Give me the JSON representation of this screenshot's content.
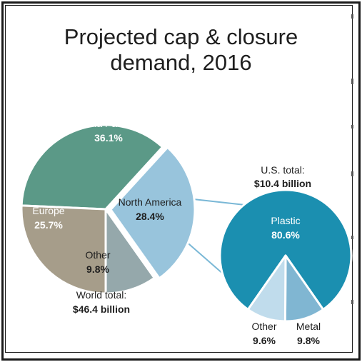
{
  "title_line1": "Projected cap & closure",
  "title_line2": "demand, 2016",
  "colors": {
    "asia_pacific": "#5b9987",
    "europe": "#a69d8a",
    "other_world": "#95a8ab",
    "north_america": "#98c4dc",
    "plastic": "#1b8fb0",
    "other_us": "#c0dcec",
    "metal": "#80b6d2",
    "connector": "#7ab8d6"
  },
  "world": {
    "total_label": "World total:",
    "total_value": "$46.4 billion"
  },
  "us": {
    "total_label": "U.S. total:",
    "total_value": "$10.4 billion"
  },
  "chart_data": [
    {
      "type": "pie",
      "categories": [
        "Asia Pacific",
        "North America",
        "Other",
        "Europe"
      ],
      "values": [
        36.1,
        28.4,
        9.8,
        25.7
      ],
      "labels": [
        "36.1%",
        "28.4%",
        "9.8%",
        "25.7%"
      ]
    },
    {
      "type": "pie",
      "categories": [
        "Plastic",
        "Metal",
        "Other"
      ],
      "values": [
        80.6,
        9.8,
        9.6
      ],
      "labels": [
        "80.6%",
        "9.8%",
        "9.6%"
      ]
    }
  ]
}
